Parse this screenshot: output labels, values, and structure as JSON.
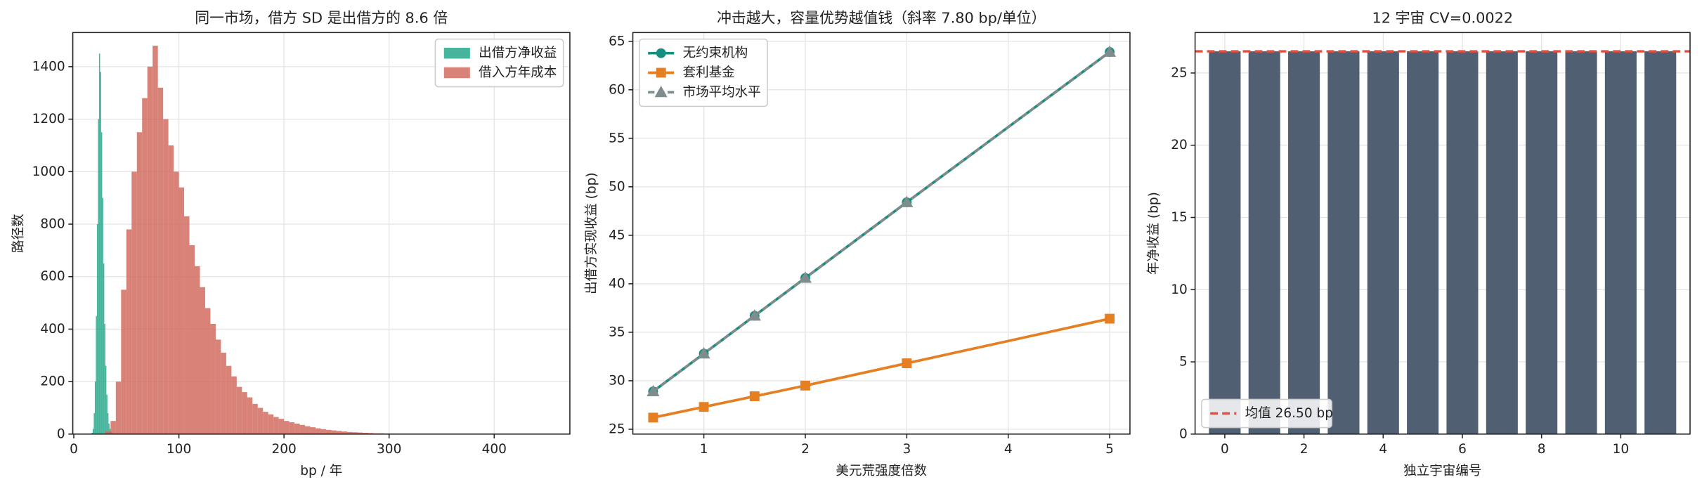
{
  "chart_data": [
    {
      "type": "histogram",
      "title": "同一市场，借方 SD 是出借方的 8.6 倍",
      "xlabel": "bp / 年",
      "ylabel": "路径数",
      "xlim": [
        -1,
        472
      ],
      "ylim": [
        0,
        1530
      ],
      "xticks": [
        0,
        100,
        200,
        300,
        400
      ],
      "yticks": [
        0,
        200,
        400,
        600,
        800,
        1000,
        1200,
        1400
      ],
      "grid": true,
      "legend": "upper right",
      "series": [
        {
          "name": "出借方净收益",
          "color": "#1fa386",
          "bins": [
            17,
            18,
            19,
            20,
            21,
            22,
            23,
            24,
            25,
            26,
            27,
            28,
            29,
            30,
            31,
            32,
            33,
            34,
            35,
            36,
            37
          ],
          "values": [
            5,
            20,
            80,
            200,
            450,
            800,
            1200,
            1450,
            1380,
            1150,
            900,
            650,
            420,
            260,
            150,
            80,
            40,
            20,
            10,
            5
          ]
        },
        {
          "name": "借入方年成本",
          "color": "#d0675a",
          "bins": [
            30,
            35,
            40,
            45,
            50,
            55,
            60,
            65,
            70,
            75,
            80,
            85,
            90,
            95,
            100,
            105,
            110,
            115,
            120,
            125,
            130,
            135,
            140,
            145,
            150,
            155,
            160,
            165,
            170,
            175,
            180,
            185,
            190,
            195,
            200,
            205,
            210,
            215,
            220,
            225,
            230,
            235,
            240,
            245,
            250,
            255,
            260,
            265,
            270,
            275,
            280,
            285,
            290,
            295,
            300,
            305,
            310
          ],
          "values": [
            10,
            50,
            200,
            550,
            780,
            1000,
            1150,
            1280,
            1400,
            1480,
            1320,
            1200,
            1100,
            1000,
            940,
            830,
            720,
            640,
            560,
            480,
            420,
            360,
            310,
            260,
            220,
            180,
            160,
            140,
            115,
            100,
            85,
            75,
            65,
            58,
            50,
            45,
            40,
            35,
            30,
            26,
            22,
            19,
            16,
            14,
            12,
            10,
            8,
            7,
            6,
            5,
            4,
            3,
            3,
            2,
            2,
            1
          ]
        }
      ]
    },
    {
      "type": "line",
      "title": "冲击越大，容量优势越值钱（斜率 7.80 bp/单位）",
      "xlabel": "美元荒强度倍数",
      "ylabel": "出借方实现收益 (bp)",
      "xlim": [
        0.3,
        5.2
      ],
      "ylim": [
        24.5,
        65.9
      ],
      "xticks": [
        1,
        2,
        3,
        4,
        5
      ],
      "yticks": [
        25,
        30,
        35,
        40,
        45,
        50,
        55,
        60,
        65
      ],
      "grid": true,
      "legend": "upper left",
      "x": [
        0.5,
        1,
        1.5,
        2,
        3,
        5
      ],
      "series": [
        {
          "name": "无约束机构",
          "color": "#16907e",
          "marker": "circle",
          "values": [
            28.9,
            32.8,
            36.7,
            40.6,
            48.4,
            63.9
          ]
        },
        {
          "name": "套利基金",
          "color": "#e67e22",
          "marker": "square",
          "values": [
            26.2,
            27.3,
            28.4,
            29.5,
            31.8,
            36.4
          ]
        },
        {
          "name": "市场平均水平",
          "color": "#7f8c8d",
          "marker": "triangle",
          "dashed": true,
          "values": [
            28.9,
            32.8,
            36.7,
            40.6,
            48.4,
            63.9
          ]
        }
      ]
    },
    {
      "type": "bar",
      "title": "12 宇宙 CV=0.0022",
      "xlabel": "独立宇宙编号",
      "ylabel": "年净收益 (bp)",
      "xlim": [
        -0.75,
        11.75
      ],
      "ylim": [
        0,
        27.8
      ],
      "xticks": [
        0,
        2,
        4,
        6,
        8,
        10
      ],
      "yticks": [
        0,
        5,
        10,
        15,
        20,
        25
      ],
      "grid": true,
      "legend": "lower left",
      "color": "#505f72",
      "x": [
        0,
        1,
        2,
        3,
        4,
        5,
        6,
        7,
        8,
        9,
        10,
        11
      ],
      "values": [
        26.5,
        26.5,
        26.5,
        26.5,
        26.5,
        26.5,
        26.5,
        26.5,
        26.5,
        26.5,
        26.5,
        26.5
      ],
      "hline": {
        "name": "均值 26.50 bp",
        "value": 26.5,
        "color": "#e74c3c"
      }
    }
  ]
}
